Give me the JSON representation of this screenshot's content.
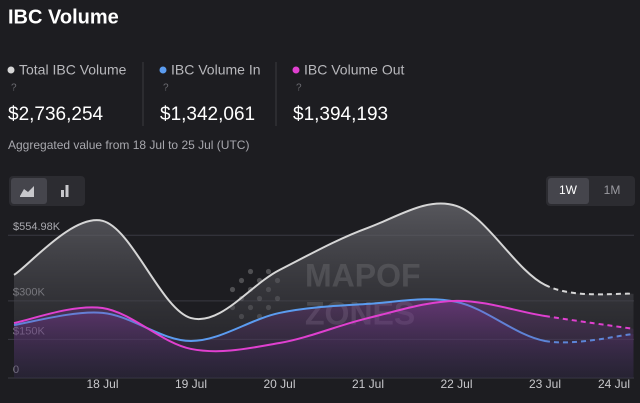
{
  "header": {
    "title": "IBC Volume",
    "stat_values": [
      "$2,736,254",
      "$1,342,061",
      "$1,394,193"
    ],
    "help": "?",
    "note": "Aggregated value from 18 Jul to 25 Jul (UTC)",
    "periods": [
      "1W",
      "1M"
    ],
    "watermark": [
      "MAPOF",
      "ZONES"
    ]
  },
  "chart_data": {
    "type": "line",
    "categories": [
      null,
      "18 Jul",
      "19 Jul",
      "20 Jul",
      "21 Jul",
      "22 Jul",
      "23 Jul",
      "24 Jul"
    ],
    "series": [
      {
        "name": "Total IBC Volume",
        "color": "#d6d6d6",
        "values": [
          401000,
          611000,
          233000,
          420000,
          584000,
          669000,
          362000,
          327000
        ]
      },
      {
        "name": "IBC Volume In",
        "color": "#5b9cf0",
        "values": [
          206000,
          253000,
          144000,
          253000,
          288000,
          296000,
          144000,
          171000
        ]
      },
      {
        "name": "IBC Volume Out",
        "color": "#e040d0",
        "values": [
          214000,
          272000,
          113000,
          136000,
          233000,
          300000,
          241000,
          191000
        ]
      }
    ],
    "ylim": [
      0,
      692000
    ],
    "yticks": [
      0,
      {
        "value": 150000,
        "label": "$150K"
      },
      {
        "value": 300000,
        "label": "$300K"
      },
      {
        "value": 554980,
        "label": "$554.98K"
      }
    ],
    "grid": true
  }
}
